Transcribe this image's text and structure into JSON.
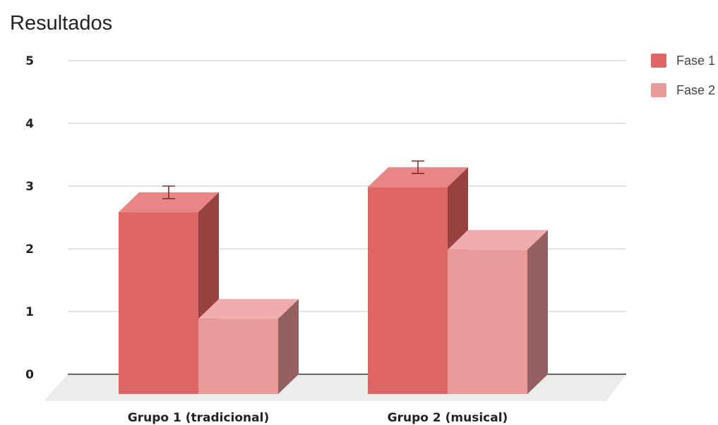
{
  "chart_data": {
    "type": "bar",
    "style": "3d",
    "title": "Resultados",
    "categories": [
      "Grupo 1 (tradicional)",
      "Grupo 2 (musical)"
    ],
    "series": [
      {
        "name": "Fase 1",
        "values": [
          2.9,
          3.3
        ],
        "error_low": [
          2.8,
          3.2
        ],
        "error_high": [
          3.0,
          3.4
        ],
        "color": "#e06666",
        "top_color": "#e88585",
        "side_color": "#984141"
      },
      {
        "name": "Fase 2",
        "values": [
          1.2,
          2.3
        ],
        "color": "#ea9999",
        "top_color": "#efadad",
        "side_color": "#956060"
      }
    ],
    "yticks": [
      "0",
      "1",
      "2",
      "3",
      "4",
      "5"
    ],
    "ylim": [
      0,
      5
    ],
    "grid": true,
    "legend_position": "top-right",
    "floor_color": "#ececec"
  }
}
